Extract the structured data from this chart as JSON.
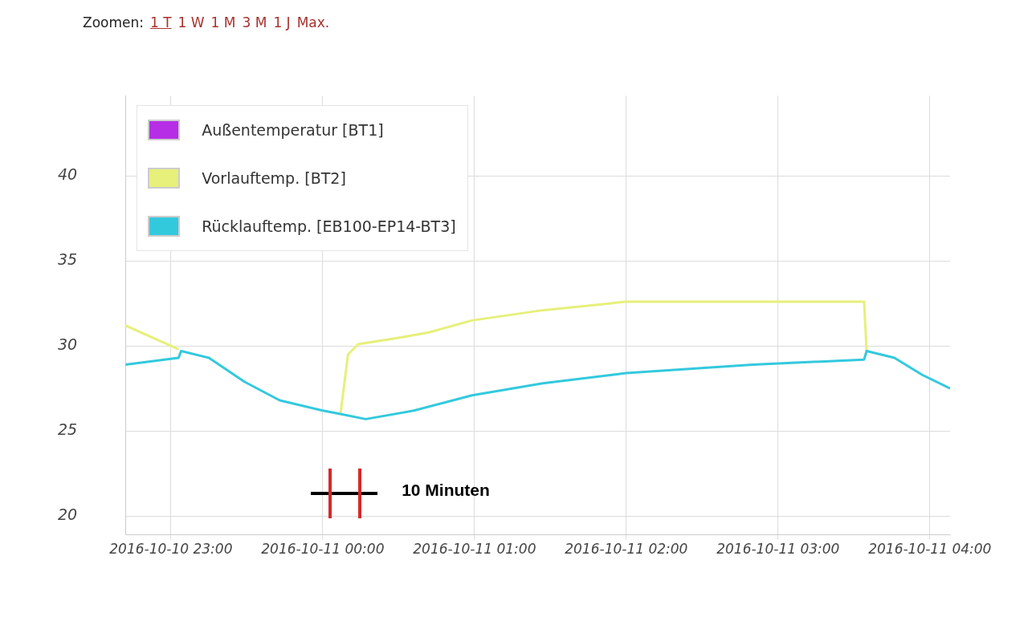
{
  "chart_data": {
    "type": "line",
    "annotations": [
      "Zoomen:",
      "1 T",
      "1 W",
      "1 M",
      "3 M",
      "1 J",
      "Max.",
      "10 Minuten"
    ],
    "series": [
      {
        "name": "Außentemperatur [BT1]",
        "color": "#b62ee6"
      },
      {
        "name": "Vorlauftemp. [BT2]",
        "color": "#e6f07a",
        "x": [
          "2016-10-10T22:42",
          "2016-10-10T23:03",
          "2016-10-10T23:30",
          "2016-10-11T00:07",
          "2016-10-11T00:10",
          "2016-10-11T00:14",
          "2016-10-11T00:31",
          "2016-10-11T00:42",
          "2016-10-11T00:59",
          "2016-10-11T01:27",
          "2016-10-11T02:00",
          "2016-10-11T02:50",
          "2016-10-11T03:34",
          "2016-10-11T03:35"
        ],
        "values": [
          31.2,
          29.8,
          null,
          26.0,
          29.5,
          30.1,
          30.5,
          30.8,
          31.5,
          32.1,
          32.6,
          32.6,
          32.6,
          29.7
        ]
      },
      {
        "name": "Rücklauftemp. [EB100-EP14-BT3]",
        "color": "#33c9dd",
        "x": [
          "2016-10-10T22:42",
          "2016-10-10T23:03",
          "2016-10-10T23:04",
          "2016-10-10T23:15",
          "2016-10-10T23:29",
          "2016-10-10T23:43",
          "2016-10-11T00:00",
          "2016-10-11T00:07",
          "2016-10-11T00:17",
          "2016-10-11T00:36",
          "2016-10-11T00:59",
          "2016-10-11T01:27",
          "2016-10-11T02:00",
          "2016-10-11T02:50",
          "2016-10-11T03:34",
          "2016-10-11T03:35",
          "2016-10-11T03:46",
          "2016-10-11T03:57",
          "2016-10-11T04:08"
        ],
        "values": [
          28.9,
          29.3,
          29.7,
          29.3,
          27.9,
          26.8,
          26.2,
          26.0,
          25.7,
          26.2,
          27.1,
          27.8,
          28.4,
          28.9,
          29.2,
          29.7,
          29.3,
          28.3,
          27.5
        ]
      }
    ],
    "xlim": [
      "2016-10-10T22:42",
      "2016-10-11T04:08"
    ],
    "xticks": [
      {
        "value": "2016-10-10T23:00",
        "label": "2016-10-10 23:00"
      },
      {
        "value": "2016-10-11T00:00",
        "label": "2016-10-11 00:00"
      },
      {
        "value": "2016-10-11T01:00",
        "label": "2016-10-11 01:00"
      },
      {
        "value": "2016-10-11T02:00",
        "label": "2016-10-11 02:00"
      },
      {
        "value": "2016-10-11T03:00",
        "label": "2016-10-11 03:00"
      },
      {
        "value": "2016-10-11T04:00",
        "label": "2016-10-11 04:00"
      }
    ],
    "ylim": [
      18.9,
      44.7
    ],
    "yticks": [
      20,
      25,
      30,
      35,
      40
    ],
    "grid": true,
    "legend": "top left",
    "marker": "none"
  }
}
